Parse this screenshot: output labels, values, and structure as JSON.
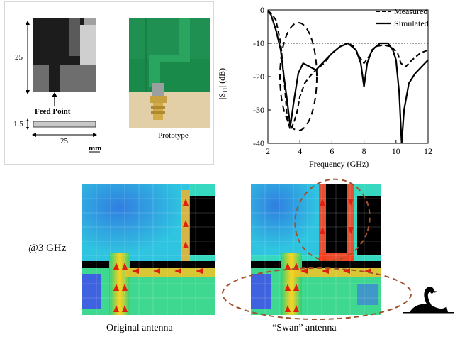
{
  "antenna_drawing": {
    "dim_width": "25",
    "dim_height": "25",
    "dim_thickness": "1.5",
    "feed_label": "Feed Point",
    "unit_label": "mm"
  },
  "prototype": {
    "caption": "Prototype"
  },
  "s11_plot": {
    "legend_measured": "Measured",
    "legend_simulated": "Simulated"
  },
  "chart_data": {
    "type": "line",
    "xlabel": "Frequency (GHz)",
    "ylabel": "|S11| (dB)",
    "xlim": [
      2,
      12
    ],
    "ylim": [
      -40,
      0
    ],
    "xticks": [
      2,
      4,
      6,
      8,
      10,
      12
    ],
    "yticks": [
      0,
      -10,
      -20,
      -30,
      -40
    ],
    "reference_line_db": -10,
    "series": [
      {
        "name": "Measured",
        "style": "dashed",
        "x": [
          2,
          2.2,
          2.5,
          2.8,
          3.0,
          3.2,
          3.4,
          3.6,
          3.8,
          4.0,
          4.3,
          4.6,
          5.0,
          5.5,
          6.0,
          6.5,
          7.0,
          7.4,
          7.7,
          8.0,
          8.3,
          8.7,
          9.2,
          9.7,
          10.1,
          10.3,
          10.6,
          11.0,
          11.5,
          12
        ],
        "y": [
          -0.3,
          -1,
          -3,
          -10,
          -20,
          -32,
          -36,
          -34,
          -31,
          -26,
          -22,
          -20,
          -18,
          -16,
          -13,
          -11,
          -10,
          -11,
          -14,
          -16,
          -14,
          -11,
          -10.5,
          -11,
          -13,
          -16,
          -17,
          -15,
          -13,
          -12
        ]
      },
      {
        "name": "Simulated",
        "style": "solid",
        "x": [
          2,
          2.2,
          2.5,
          2.8,
          3.0,
          3.2,
          3.4,
          3.6,
          3.9,
          4.2,
          4.6,
          5.0,
          5.4,
          6.0,
          6.5,
          7.0,
          7.5,
          7.8,
          8.0,
          8.2,
          8.5,
          9.0,
          9.5,
          9.8,
          10.0,
          10.2,
          10.35,
          10.5,
          10.8,
          11.2,
          11.6,
          12
        ],
        "y": [
          -0.3,
          -1.5,
          -6,
          -12,
          -20,
          -27,
          -35,
          -28,
          -19,
          -16,
          -17,
          -18,
          -16,
          -13,
          -11,
          -10,
          -12,
          -16,
          -23,
          -16,
          -12,
          -10,
          -10,
          -12,
          -15,
          -25,
          -40,
          -30,
          -22,
          -19,
          -17,
          -15
        ]
      }
    ]
  },
  "current_maps": {
    "freq_label": "@3 GHz",
    "left_caption": "Original antenna",
    "right_caption": "“Swan” antenna"
  }
}
